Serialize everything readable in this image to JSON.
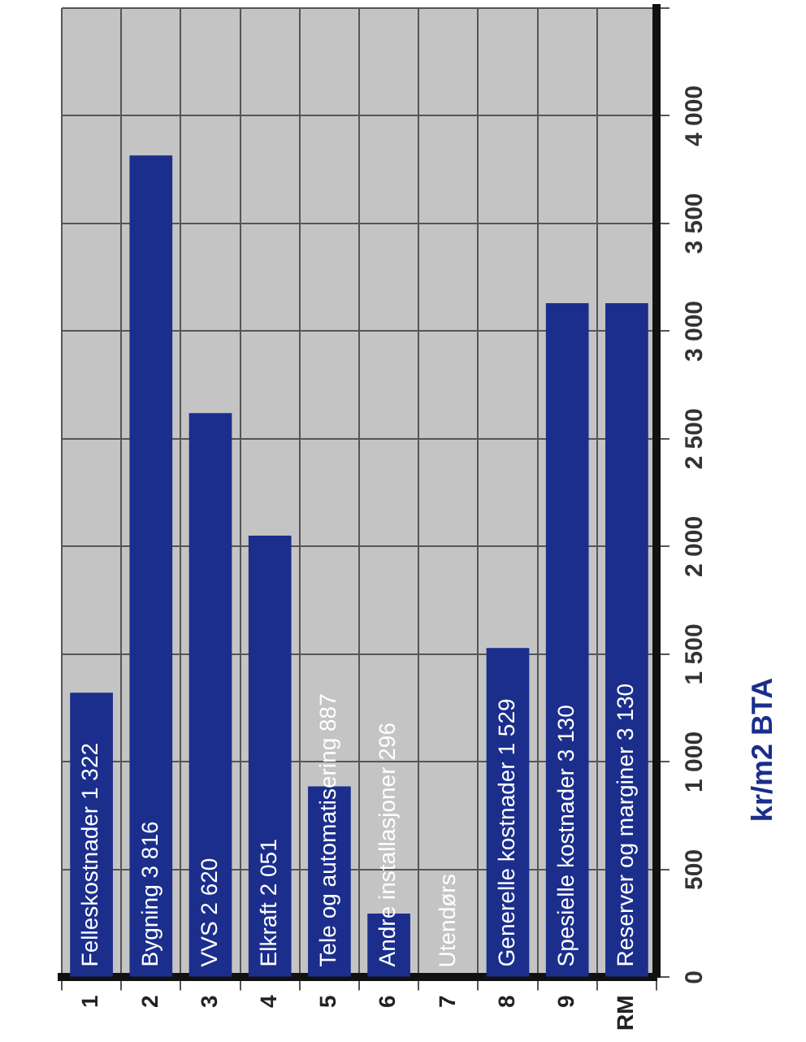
{
  "chart_data": {
    "type": "bar",
    "ylabel": "kr/m2 BTA",
    "categories": [
      "1",
      "2",
      "3",
      "4",
      "5",
      "6",
      "7",
      "8",
      "9",
      "RM"
    ],
    "values": [
      1322,
      3816,
      2620,
      2051,
      887,
      296,
      0,
      1529,
      3130,
      3130
    ],
    "value_labels": [
      "Felleskostnader 1 322",
      "Bygning 3 816",
      "VVS 2 620",
      "Elkraft 2 051",
      "Tele og automatisering 887",
      "Andre installasjoner 296",
      "Utendørs",
      "Generelle kostnader 1 529",
      "Spesielle kostnader 3 130",
      "Reserver og marginer 3 130"
    ],
    "color": "#1b2e8c",
    "ylim": [
      0,
      4500
    ],
    "yticks": [
      {
        "value": 0,
        "label": "0"
      },
      {
        "value": 500,
        "label": "500"
      },
      {
        "value": 1000,
        "label": "1 000"
      },
      {
        "value": 1500,
        "label": "1 500"
      },
      {
        "value": 2000,
        "label": "2 000"
      },
      {
        "value": 2500,
        "label": "2 500"
      },
      {
        "value": 3000,
        "label": "3 000"
      },
      {
        "value": 3500,
        "label": "3 500"
      },
      {
        "value": 4000,
        "label": "4 000"
      },
      {
        "value": 4500,
        "label": null
      }
    ],
    "grid": true
  }
}
